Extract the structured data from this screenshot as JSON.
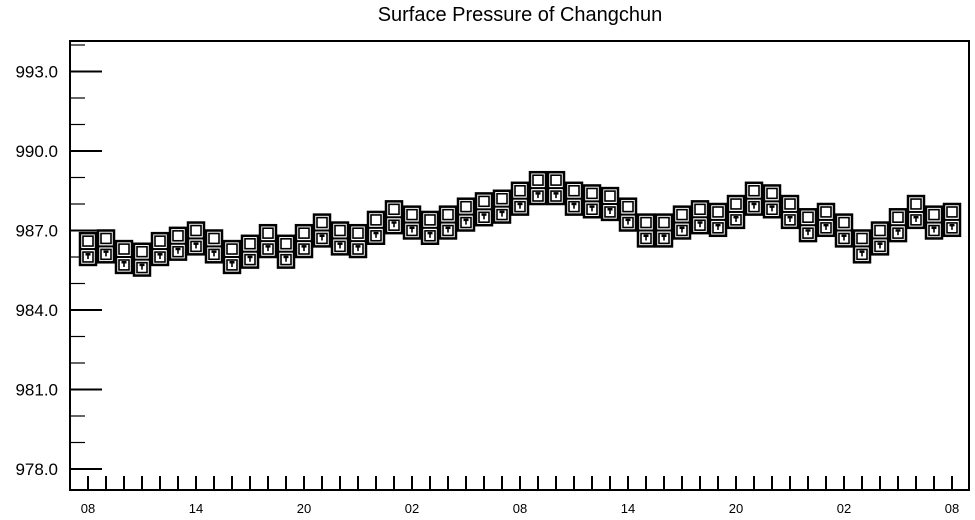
{
  "chart_data": {
    "type": "box",
    "title": "Surface Pressure of Changchun",
    "xlabel": "",
    "ylabel": "",
    "ylim": [
      978.0,
      995.0
    ],
    "y_ticks": [
      "978.0",
      "981.0",
      "984.0",
      "987.0",
      "990.0",
      "993.0"
    ],
    "x_tick_labels": [
      "08",
      "14",
      "20",
      "02",
      "08",
      "14",
      "20",
      "02",
      "08"
    ],
    "grid": false,
    "legend": "none",
    "series": [
      {
        "values": [
          986.3,
          986.4,
          986.0,
          985.9,
          986.3,
          986.5,
          986.7,
          986.4,
          986.0,
          986.2,
          986.6,
          986.2,
          986.6,
          987.0,
          986.7,
          986.6,
          987.1,
          987.5,
          987.3,
          987.1,
          987.3,
          987.6,
          987.8,
          987.9,
          988.2,
          988.6,
          988.6,
          988.2,
          988.1,
          988.0,
          987.6,
          987.0,
          987.0,
          987.3,
          987.5,
          987.4,
          987.7,
          988.2,
          988.1,
          987.7,
          987.2,
          987.4,
          987.0,
          986.4,
          986.7,
          987.2,
          987.7,
          987.3,
          987.4
        ],
        "box_half_height": 0.6
      }
    ]
  }
}
